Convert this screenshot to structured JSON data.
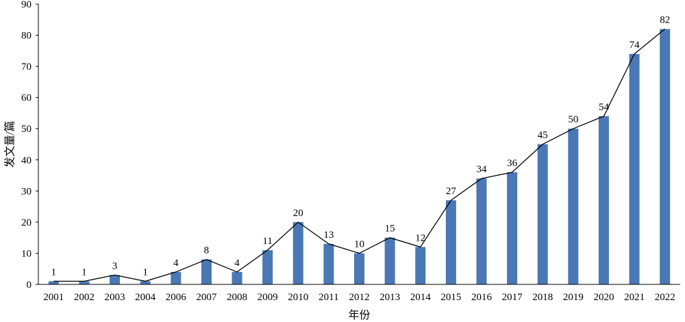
{
  "chart_data": {
    "type": "bar",
    "title": "",
    "xlabel": "年份",
    "ylabel": "发文量/篇",
    "categories": [
      "2001",
      "2002",
      "2003",
      "2004",
      "2006",
      "2007",
      "2008",
      "2009",
      "2010",
      "2011",
      "2012",
      "2013",
      "2014",
      "2015",
      "2016",
      "2017",
      "2018",
      "2019",
      "2020",
      "2021",
      "2022"
    ],
    "values": [
      1,
      1,
      3,
      1,
      4,
      8,
      4,
      11,
      20,
      13,
      10,
      15,
      12,
      27,
      34,
      36,
      45,
      50,
      54,
      74,
      82
    ],
    "ylim": [
      0,
      90
    ],
    "yticks": [
      0,
      10,
      20,
      30,
      40,
      50,
      60,
      70,
      80,
      90
    ],
    "overlay_line": true,
    "data_labels": true,
    "grid": false,
    "bar_color": "#4a78b4",
    "line_color": "#000000"
  }
}
